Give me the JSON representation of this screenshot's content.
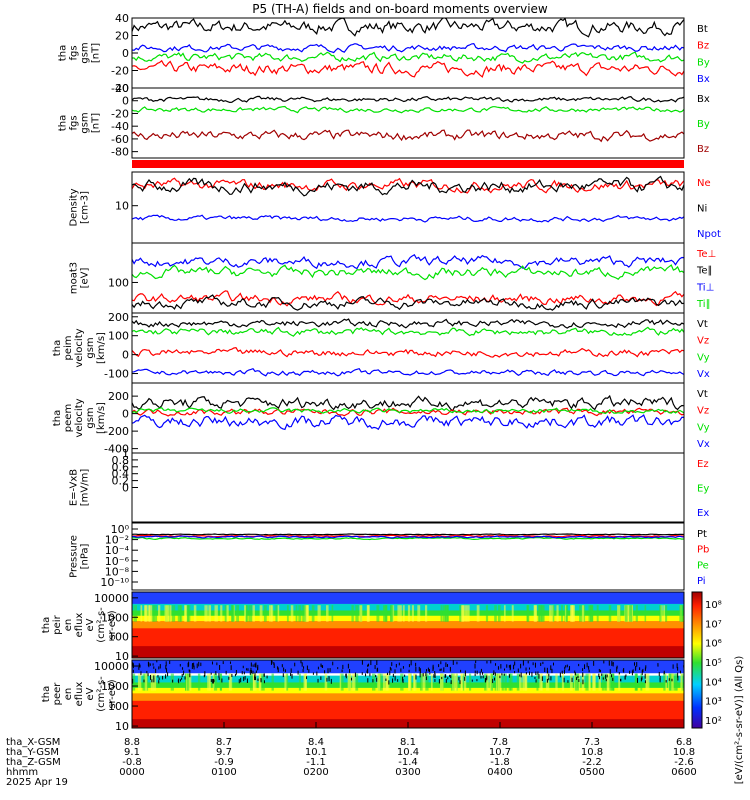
{
  "title": "P5 (TH-A) fields and on-board moments overview",
  "colors": {
    "black": "#000000",
    "red": "#ff0000",
    "green": "#00e000",
    "blue": "#0000ff",
    "darkred": "#a00000"
  },
  "chart_data": [
    {
      "type": "line",
      "ylabel": [
        "tha",
        "fgs",
        "gsm",
        "[nT]"
      ],
      "ylim": [
        -40,
        40
      ],
      "ticks": [
        40,
        20,
        0,
        -20,
        -40
      ],
      "series": [
        {
          "name": "Bt",
          "color": "black",
          "base": 30,
          "noise": 8
        },
        {
          "name": "Bz",
          "color": "red",
          "base": -18,
          "noise": 7
        },
        {
          "name": "By",
          "color": "green",
          "base": -5,
          "noise": 5
        },
        {
          "name": "Bx",
          "color": "blue",
          "base": 6,
          "noise": 4
        }
      ]
    },
    {
      "type": "line",
      "ylabel": [
        "tha",
        "fgs",
        "gsm",
        "[nT]"
      ],
      "ylim": [
        -90,
        20
      ],
      "ticks": [
        20,
        0,
        -20,
        -40,
        -60,
        -80
      ],
      "series": [
        {
          "name": "Bx",
          "color": "black",
          "base": 2,
          "noise": 4
        },
        {
          "name": "By",
          "color": "green",
          "base": -14,
          "noise": 4
        },
        {
          "name": "Bz",
          "color": "darkred",
          "base": -55,
          "noise": 8
        }
      ]
    },
    {
      "type": "status_bar",
      "color": "red"
    },
    {
      "type": "line",
      "ylabel": [
        "Density",
        "[cm-3]"
      ],
      "log": true,
      "ylim": [
        1,
        80
      ],
      "ticks": [
        10
      ],
      "series": [
        {
          "name": "Ne",
          "color": "red",
          "base": 35,
          "noise": 0.1
        },
        {
          "name": "Ni",
          "color": "black",
          "base": 33,
          "noise": 0.12
        },
        {
          "name": "Npot",
          "color": "blue",
          "base": 4.5,
          "noise": 0.05
        }
      ]
    },
    {
      "type": "line",
      "ylabel": [
        "moat3",
        "[eV]"
      ],
      "log": true,
      "ylim": [
        20,
        800
      ],
      "ticks": [
        100
      ],
      "series": [
        {
          "name": "Te⊥",
          "color": "red",
          "base": 42,
          "noise": 0.08
        },
        {
          "name": "Te∥",
          "color": "black",
          "base": 34,
          "noise": 0.08
        },
        {
          "name": "Ti⊥",
          "color": "blue",
          "base": 300,
          "noise": 0.08
        },
        {
          "name": "Ti∥",
          "color": "green",
          "base": 170,
          "noise": 0.08
        }
      ]
    },
    {
      "type": "line",
      "ylabel": [
        "tha",
        "peim",
        "velocity",
        "gsm",
        "[km/s]"
      ],
      "ylim": [
        -150,
        220
      ],
      "ticks": [
        200,
        100,
        0,
        -100
      ],
      "series": [
        {
          "name": "Vt",
          "color": "black",
          "base": 165,
          "noise": 20
        },
        {
          "name": "Vz",
          "color": "red",
          "base": 10,
          "noise": 20
        },
        {
          "name": "Vy",
          "color": "green",
          "base": 120,
          "noise": 20
        },
        {
          "name": "Vx",
          "color": "blue",
          "base": -95,
          "noise": 15
        }
      ]
    },
    {
      "type": "line",
      "ylabel": [
        "tha",
        "peem",
        "velocity",
        "gsm",
        "[km/s]"
      ],
      "ylim": [
        -450,
        350
      ],
      "ticks": [
        200,
        0,
        -200,
        -400
      ],
      "series": [
        {
          "name": "Vt",
          "color": "black",
          "base": 120,
          "noise": 70
        },
        {
          "name": "Vz",
          "color": "red",
          "base": 20,
          "noise": 40
        },
        {
          "name": "Vy",
          "color": "green",
          "base": 30,
          "noise": 30
        },
        {
          "name": "Vx",
          "color": "blue",
          "base": -90,
          "noise": 70
        }
      ]
    },
    {
      "type": "line",
      "ylabel": [
        "E=-VxB",
        "[mV/m]"
      ],
      "ylim": [
        -1,
        1
      ],
      "ticks": [
        1.0,
        0.8,
        0.6,
        0.4,
        0.2,
        0.0
      ],
      "series": [
        {
          "name": "Ez",
          "color": "red"
        },
        {
          "name": "Ey",
          "color": "green"
        },
        {
          "name": "Ex",
          "color": "blue"
        }
      ]
    },
    {
      "type": "line",
      "ylabel": [
        "Pressure",
        "[nPa]"
      ],
      "log": true,
      "ylim": [
        1e-12,
        10
      ],
      "ticks": [
        "10⁰",
        "10⁻²",
        "10⁻⁴",
        "10⁻⁶",
        "10⁻⁸",
        "10⁻¹⁰"
      ],
      "series": [
        {
          "name": "Pt",
          "color": "black",
          "base": 0.06,
          "noise": 0.05
        },
        {
          "name": "Pb",
          "color": "red",
          "base": 0.03,
          "noise": 0.1
        },
        {
          "name": "Pe",
          "color": "green",
          "base": 0.01,
          "noise": 0.1
        },
        {
          "name": "Pi",
          "color": "blue",
          "base": 0.02,
          "noise": 0.1
        }
      ]
    },
    {
      "type": "heatmap",
      "ylabel": [
        "tha",
        "peir",
        "en",
        "eflux",
        "eV",
        "(cm²-s-",
        "sr-eV)"
      ],
      "log": true,
      "ylim": [
        8,
        20000
      ],
      "ticks": [
        10000,
        1000,
        100,
        10
      ]
    },
    {
      "type": "heatmap",
      "ylabel": [
        "tha",
        "peer",
        "en",
        "eflux",
        "eV",
        "(cm²-s-",
        "sr-eV)"
      ],
      "log": true,
      "ylim": [
        8,
        20000
      ],
      "ticks": [
        10000,
        1000,
        100,
        10
      ]
    }
  ],
  "colorbar": {
    "ticks": [
      "10⁸",
      "10⁷",
      "10⁶",
      "10⁵",
      "10⁴",
      "10³",
      "10²"
    ],
    "label": "[eV/(cm²-s-sr-eV)] (All Qs)"
  },
  "xaxis": {
    "rows": [
      {
        "label": "tha_X-GSM",
        "values": [
          "8.8",
          "8.7",
          "8.4",
          "8.1",
          "7.8",
          "7.3",
          "6.8"
        ]
      },
      {
        "label": "tha_Y-GSM",
        "values": [
          "9.1",
          "9.7",
          "10.1",
          "10.4",
          "10.7",
          "10.8",
          "10.8"
        ]
      },
      {
        "label": "tha_Z-GSM",
        "values": [
          "-0.8",
          "-0.9",
          "-1.1",
          "-1.4",
          "-1.8",
          "-2.2",
          "-2.6"
        ]
      },
      {
        "label": "hhmm",
        "values": [
          "0000",
          "0100",
          "0200",
          "0300",
          "0400",
          "0500",
          "0600"
        ]
      }
    ],
    "date": "2025 Apr 19"
  }
}
